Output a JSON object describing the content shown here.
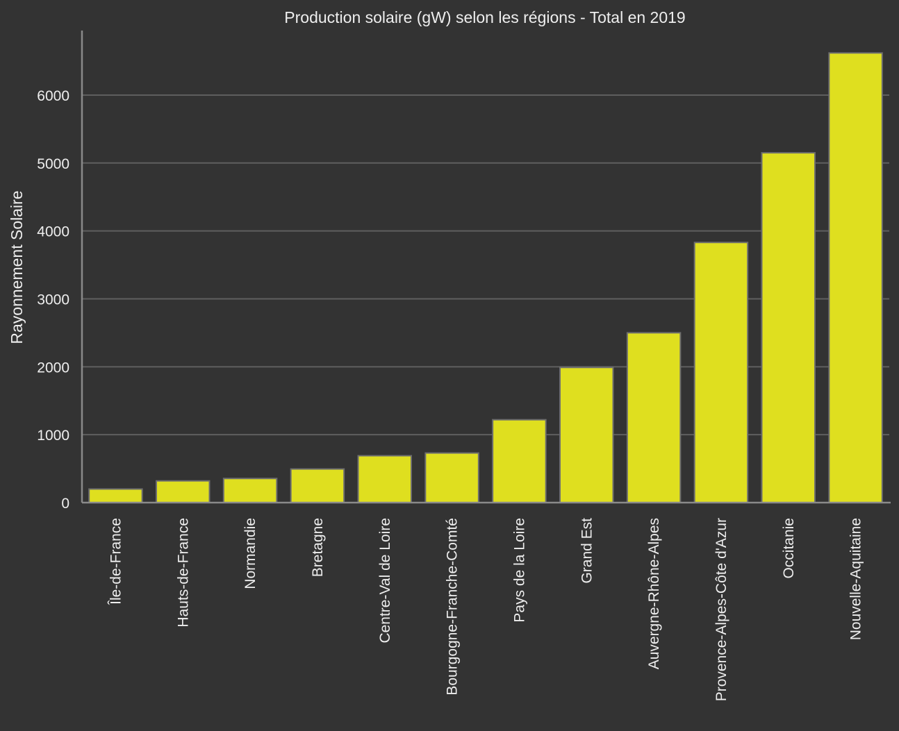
{
  "chart_data": {
    "type": "bar",
    "title": "Production solaire (gW) selon les régions - Total en 2019",
    "xlabel": "",
    "ylabel": "Rayonnement Solaire",
    "categories": [
      "Île-de-France",
      "Hauts-de-France",
      "Normandie",
      "Bretagne",
      "Centre-Val de Loire",
      "Bourgogne-Franche-Comté",
      "Pays de la Loire",
      "Grand Est",
      "Auvergne-Rhône-Alpes",
      "Provence-Alpes-Côte d'Azur",
      "Occitanie",
      "Nouvelle-Aquitaine"
    ],
    "values": [
      200,
      320,
      355,
      495,
      690,
      730,
      1220,
      1990,
      2500,
      3830,
      5150,
      6620
    ],
    "ylim": [
      0,
      6950
    ],
    "yticks": [
      0,
      1000,
      2000,
      3000,
      4000,
      5000,
      6000
    ],
    "ytick_labels": [
      "0",
      "1000",
      "2000",
      "3000",
      "4000",
      "5000",
      "6000"
    ],
    "grid": true,
    "legend": "none",
    "colors": {
      "background": "#333333",
      "bar_fill": "#dfdf1f",
      "bar_edge": "#6e6e6e",
      "grid": "#5f5f5f",
      "axis": "#8a8a8a",
      "text": "#eeeeee"
    }
  }
}
